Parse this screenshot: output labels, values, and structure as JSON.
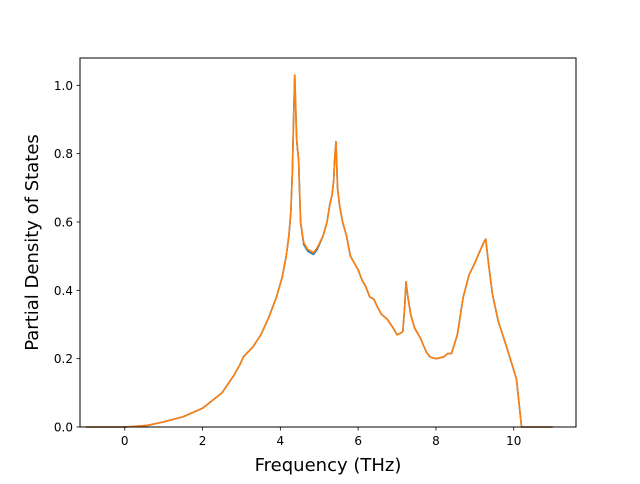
{
  "chart_data": {
    "type": "line",
    "title": "",
    "xlabel": "Frequency (THz)",
    "ylabel": "Partial Density of States",
    "xlim": [
      -1.15,
      11.6
    ],
    "ylim": [
      0.0,
      1.08
    ],
    "xticks": [
      0,
      2,
      4,
      6,
      8,
      10
    ],
    "yticks": [
      0.0,
      0.2,
      0.4,
      0.6,
      0.8,
      1.0
    ],
    "grid": false,
    "legend": "none",
    "series": [
      {
        "color": "#1f77b4",
        "x": [
          -1.0,
          0.0,
          0.3,
          0.6,
          1.0,
          1.5,
          2.0,
          2.5,
          2.8,
          2.95,
          3.05,
          3.3,
          3.5,
          3.7,
          3.9,
          4.05,
          4.15,
          4.22,
          4.27,
          4.31,
          4.34,
          4.37,
          4.42,
          4.47,
          4.52,
          4.6,
          4.7,
          4.85,
          4.95,
          5.1,
          5.2,
          5.27,
          5.33,
          5.37,
          5.4,
          5.43,
          5.47,
          5.52,
          5.6,
          5.7,
          5.8,
          5.9,
          6.0,
          6.1,
          6.2,
          6.3,
          6.4,
          6.5,
          6.6,
          6.75,
          6.9,
          7.0,
          7.1,
          7.15,
          7.2,
          7.23,
          7.28,
          7.35,
          7.45,
          7.6,
          7.75,
          7.85,
          8.0,
          8.2,
          8.3,
          8.4,
          8.55,
          8.7,
          8.85,
          9.0,
          9.15,
          9.25,
          9.28,
          9.35,
          9.45,
          9.6,
          9.8,
          9.95,
          10.07,
          10.2,
          11.0
        ],
        "y": [
          0.0,
          0.0,
          0.002,
          0.005,
          0.015,
          0.03,
          0.055,
          0.1,
          0.15,
          0.18,
          0.205,
          0.235,
          0.27,
          0.32,
          0.38,
          0.44,
          0.5,
          0.56,
          0.63,
          0.75,
          0.9,
          1.03,
          0.84,
          0.78,
          0.6,
          0.535,
          0.515,
          0.505,
          0.52,
          0.56,
          0.6,
          0.65,
          0.68,
          0.72,
          0.79,
          0.835,
          0.7,
          0.65,
          0.6,
          0.56,
          0.5,
          0.48,
          0.46,
          0.43,
          0.41,
          0.38,
          0.375,
          0.35,
          0.33,
          0.315,
          0.29,
          0.27,
          0.275,
          0.28,
          0.36,
          0.425,
          0.38,
          0.33,
          0.29,
          0.26,
          0.22,
          0.205,
          0.2,
          0.205,
          0.215,
          0.215,
          0.27,
          0.38,
          0.445,
          0.48,
          0.52,
          0.545,
          0.55,
          0.48,
          0.39,
          0.31,
          0.24,
          0.185,
          0.14,
          0.0,
          0.0
        ]
      },
      {
        "color": "#ff7f0e",
        "x": [
          -1.0,
          0.0,
          0.3,
          0.6,
          1.0,
          1.5,
          2.0,
          2.5,
          2.8,
          2.95,
          3.05,
          3.3,
          3.5,
          3.7,
          3.9,
          4.05,
          4.15,
          4.22,
          4.27,
          4.31,
          4.34,
          4.37,
          4.42,
          4.47,
          4.52,
          4.6,
          4.7,
          4.85,
          4.95,
          5.1,
          5.2,
          5.27,
          5.33,
          5.37,
          5.4,
          5.43,
          5.47,
          5.52,
          5.6,
          5.7,
          5.8,
          5.9,
          6.0,
          6.1,
          6.2,
          6.3,
          6.4,
          6.5,
          6.6,
          6.75,
          6.9,
          7.0,
          7.1,
          7.15,
          7.2,
          7.23,
          7.28,
          7.35,
          7.45,
          7.6,
          7.75,
          7.85,
          8.0,
          8.2,
          8.3,
          8.4,
          8.55,
          8.7,
          8.85,
          9.0,
          9.15,
          9.25,
          9.28,
          9.35,
          9.45,
          9.6,
          9.8,
          9.95,
          10.07,
          10.2,
          11.0
        ],
        "y": [
          0.0,
          0.0,
          0.002,
          0.005,
          0.015,
          0.03,
          0.055,
          0.1,
          0.15,
          0.18,
          0.205,
          0.235,
          0.27,
          0.32,
          0.38,
          0.44,
          0.5,
          0.56,
          0.63,
          0.75,
          0.9,
          1.03,
          0.84,
          0.78,
          0.6,
          0.54,
          0.52,
          0.51,
          0.525,
          0.56,
          0.6,
          0.65,
          0.68,
          0.72,
          0.79,
          0.835,
          0.7,
          0.65,
          0.6,
          0.56,
          0.5,
          0.48,
          0.46,
          0.43,
          0.41,
          0.38,
          0.375,
          0.35,
          0.33,
          0.315,
          0.29,
          0.27,
          0.275,
          0.28,
          0.36,
          0.425,
          0.38,
          0.33,
          0.29,
          0.26,
          0.22,
          0.205,
          0.2,
          0.205,
          0.215,
          0.215,
          0.27,
          0.38,
          0.445,
          0.48,
          0.52,
          0.545,
          0.55,
          0.48,
          0.39,
          0.31,
          0.24,
          0.185,
          0.14,
          0.0,
          0.0
        ]
      }
    ]
  }
}
